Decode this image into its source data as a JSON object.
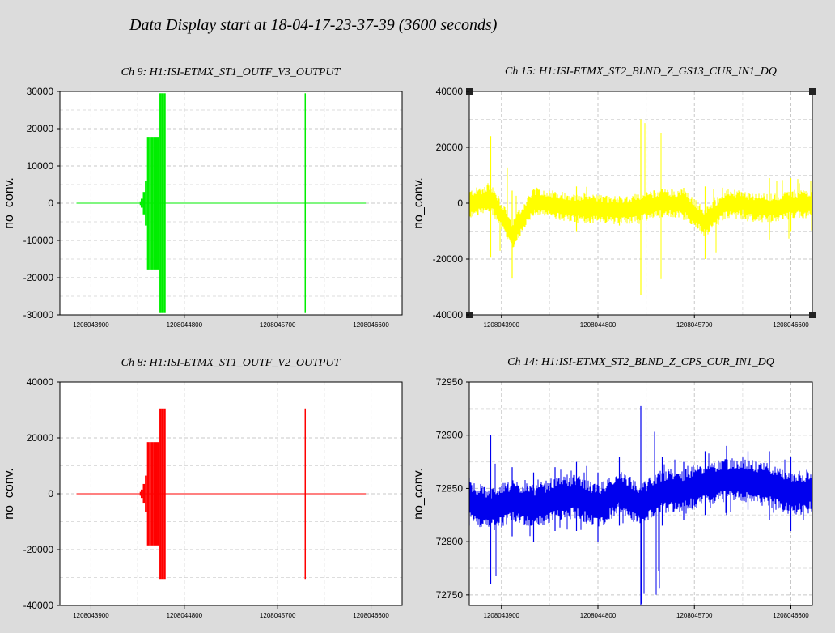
{
  "page_title": "Data Display start at 18-04-17-23-37-39 (3600 seconds)",
  "chart_data": [
    {
      "type": "line",
      "title": "Ch 9: H1:ISI-ETMX_ST1_OUTF_V3_OUTPUT",
      "ylabel": "no_conv.",
      "xlabel": "",
      "ylim": [
        -30000,
        30000
      ],
      "yticks": [
        -30000,
        -20000,
        -10000,
        0,
        10000,
        20000,
        30000
      ],
      "ytick_labels": [
        "-30000",
        "-20000",
        "-10000",
        "0",
        "10000",
        "20000",
        "30000"
      ],
      "xlim": [
        1208043600,
        1208046900
      ],
      "xticks": [
        1208043900,
        1208044800,
        1208045700,
        1208046600
      ],
      "xtick_labels": [
        "1208043900",
        "1208044800",
        "1208045700",
        "1208046600"
      ],
      "grid": true,
      "color": "#00ee00",
      "series": [
        {
          "x": [
            1208043760,
            1208044370,
            1208044380,
            1208044400,
            1208044420,
            1208044440,
            1208044460,
            1208044480,
            1208044500,
            1208044520,
            1208044540,
            1208044560,
            1208044580,
            1208044600,
            1208044620,
            1208044640,
            1208044660,
            1208044680,
            1208045950,
            1208045960,
            1208045970,
            1208046550
          ],
          "y_max": [
            0,
            500,
            1200,
            3000,
            6000,
            17800,
            17800,
            17800,
            17800,
            17800,
            17800,
            29500,
            29500,
            29500,
            0,
            0,
            0,
            0,
            0,
            29500,
            0,
            0
          ],
          "y_min": [
            0,
            -500,
            -1200,
            -3000,
            -6000,
            -17800,
            -17800,
            -17800,
            -17800,
            -17800,
            -17800,
            -29500,
            -29500,
            -29500,
            0,
            0,
            0,
            0,
            0,
            -29500,
            0,
            0
          ]
        }
      ]
    },
    {
      "type": "line",
      "title": "Ch 15: H1:ISI-ETMX_ST2_BLND_Z_GS13_CUR_IN1_DQ",
      "ylabel": "no_conv.",
      "xlabel": "",
      "ylim": [
        -40000,
        40000
      ],
      "yticks": [
        -40000,
        -20000,
        0,
        20000,
        40000
      ],
      "ytick_labels": [
        "-40000",
        "-20000",
        "0",
        "20000",
        "40000"
      ],
      "xlim": [
        1208043600,
        1208046800
      ],
      "xticks": [
        1208043900,
        1208044800,
        1208045700,
        1208046600
      ],
      "xtick_labels": [
        "1208043900",
        "1208044800",
        "1208045700",
        "1208046600"
      ],
      "grid": true,
      "color": "#ffff00",
      "series": [
        {
          "x": [
            1208043600,
            1208043800,
            1208044000,
            1208044200,
            1208044400,
            1208044600,
            1208044800,
            1208045000,
            1208045200,
            1208045400,
            1208045600,
            1208045800,
            1208046000,
            1208046200,
            1208046400,
            1208046600,
            1208046800
          ],
          "y_max": [
            4000,
            24000,
            4500,
            5000,
            4000,
            6000,
            2000,
            2500,
            30000,
            5000,
            5500,
            6000,
            3000,
            3500,
            9000,
            9000,
            8000
          ],
          "y_min": [
            -5000,
            -19500,
            -27000,
            -4000,
            -5000,
            -10000,
            -6000,
            -8000,
            -33000,
            -5000,
            -6000,
            -20000,
            -3000,
            -6000,
            -13000,
            -10000,
            -8000
          ]
        }
      ]
    },
    {
      "type": "line",
      "title": "Ch 8: H1:ISI-ETMX_ST1_OUTF_V2_OUTPUT",
      "ylabel": "no_conv.",
      "xlabel": "",
      "ylim": [
        -40000,
        40000
      ],
      "yticks": [
        -40000,
        -20000,
        0,
        20000,
        40000
      ],
      "ytick_labels": [
        "-40000",
        "-20000",
        "0",
        "20000",
        "40000"
      ],
      "xlim": [
        1208043600,
        1208046900
      ],
      "xticks": [
        1208043900,
        1208044800,
        1208045700,
        1208046600
      ],
      "xtick_labels": [
        "1208043900",
        "1208044800",
        "1208045700",
        "1208046600"
      ],
      "grid": true,
      "color": "#ff0000",
      "series": [
        {
          "x": [
            1208043760,
            1208044370,
            1208044380,
            1208044400,
            1208044420,
            1208044440,
            1208044460,
            1208044480,
            1208044500,
            1208044520,
            1208044540,
            1208044560,
            1208044580,
            1208044600,
            1208044620,
            1208044640,
            1208044660,
            1208044680,
            1208045950,
            1208045960,
            1208045970,
            1208046550
          ],
          "y_max": [
            0,
            700,
            1500,
            3500,
            6500,
            18500,
            18500,
            18500,
            18500,
            18500,
            18500,
            30500,
            30500,
            30500,
            0,
            0,
            0,
            0,
            0,
            30500,
            0,
            0
          ],
          "y_min": [
            0,
            -700,
            -1500,
            -3500,
            -6500,
            -18500,
            -18500,
            -18500,
            -18500,
            -18500,
            -18500,
            -30500,
            -30500,
            -30500,
            0,
            0,
            0,
            0,
            0,
            -30500,
            0,
            0
          ]
        }
      ]
    },
    {
      "type": "line",
      "title": "Ch 14: H1:ISI-ETMX_ST2_BLND_Z_CPS_CUR_IN1_DQ",
      "ylabel": "no_conv.",
      "xlabel": "",
      "ylim": [
        72740,
        72950
      ],
      "yticks": [
        72750,
        72800,
        72850,
        72900,
        72950
      ],
      "ytick_labels": [
        "72750",
        "72800",
        "72850",
        "72900",
        "72950"
      ],
      "xlim": [
        1208043600,
        1208046800
      ],
      "xticks": [
        1208043900,
        1208044800,
        1208045700,
        1208046600
      ],
      "xtick_labels": [
        "1208043900",
        "1208044800",
        "1208045700",
        "1208046600"
      ],
      "grid": true,
      "color": "#0000ee",
      "series": [
        {
          "x": [
            1208043600,
            1208043800,
            1208044000,
            1208044200,
            1208044400,
            1208044600,
            1208044800,
            1208045000,
            1208045200,
            1208045400,
            1208045600,
            1208045800,
            1208046000,
            1208046200,
            1208046400,
            1208046600,
            1208046800
          ],
          "y_max": [
            72860,
            72900,
            72870,
            72865,
            72870,
            72875,
            72865,
            72880,
            72928,
            72880,
            72875,
            72885,
            72890,
            72885,
            72885,
            72880,
            72880
          ],
          "y_min": [
            72815,
            72760,
            72805,
            72800,
            72810,
            72810,
            72800,
            72815,
            72740,
            72815,
            72820,
            72825,
            72825,
            72830,
            72820,
            72810,
            72815
          ]
        }
      ]
    }
  ]
}
